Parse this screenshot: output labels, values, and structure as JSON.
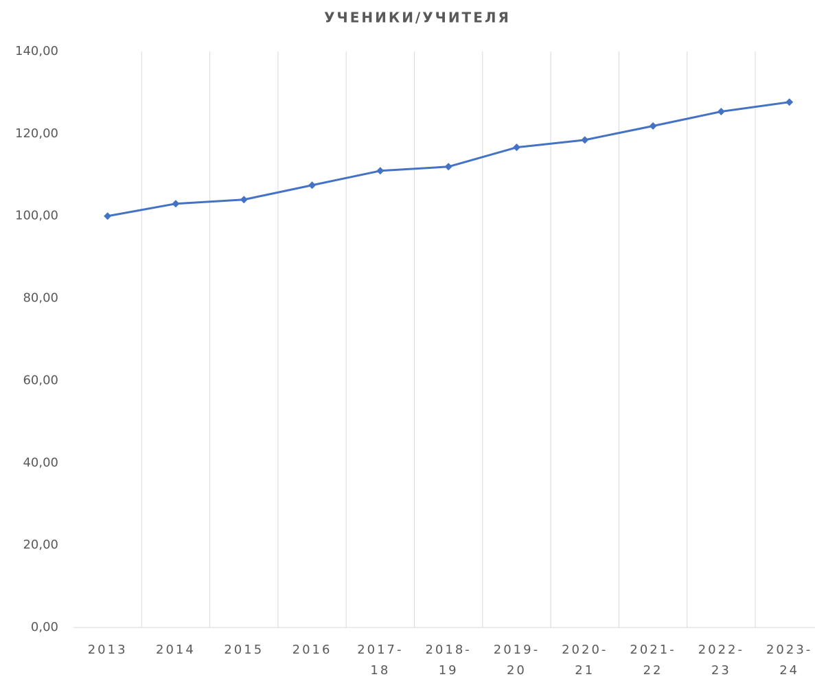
{
  "chart_data": {
    "type": "line",
    "title": "УЧЕНИКИ/УЧИТЕЛЯ",
    "categories": [
      "2013",
      "2014",
      "2015",
      "2016",
      "2017-18",
      "2018-19",
      "2019-20",
      "2020-21",
      "2021-22",
      "2022-23",
      "2023-24"
    ],
    "series": [
      {
        "name": "Ученики/учителя",
        "color": "#4472c4",
        "values": [
          100.0,
          103.0,
          104.0,
          107.5,
          111.0,
          112.0,
          116.7,
          118.5,
          121.9,
          125.4,
          127.7
        ]
      }
    ],
    "ylim": [
      0,
      140
    ],
    "yticks": [
      {
        "value": 0,
        "label": "0,00"
      },
      {
        "value": 20,
        "label": "20,00"
      },
      {
        "value": 40,
        "label": "40,00"
      },
      {
        "value": 60,
        "label": "60,00"
      },
      {
        "value": 80,
        "label": "80,00"
      },
      {
        "value": 100,
        "label": "100,00"
      },
      {
        "value": 120,
        "label": "120,00"
      },
      {
        "value": 140,
        "label": "140,00"
      }
    ],
    "grid": "x"
  }
}
